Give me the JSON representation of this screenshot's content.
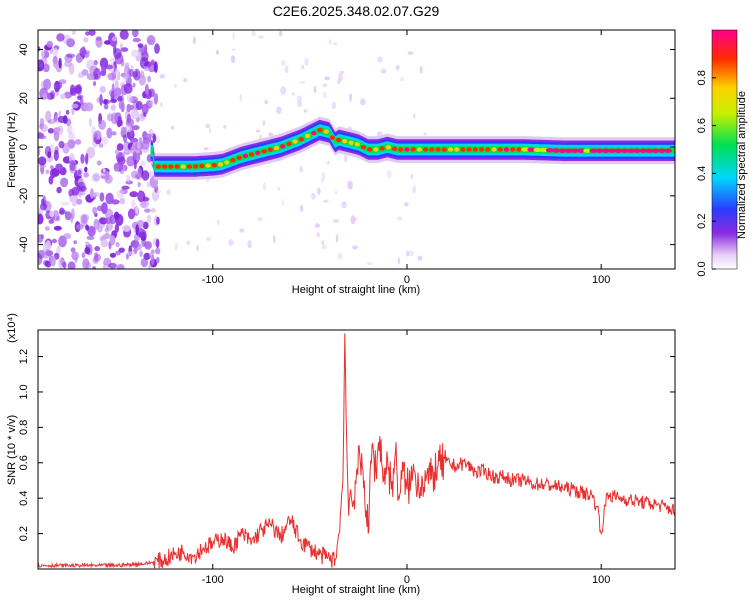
{
  "chart_data": [
    {
      "type": "heatmap",
      "title": "C2E6.2025.348.02.07.G29",
      "xlabel": "Height of straight line (km)",
      "ylabel": "Frequency (Hz)",
      "xlim": [
        -190,
        138
      ],
      "ylim": [
        -50,
        48
      ],
      "xticks": [
        -100,
        0,
        100
      ],
      "xtick_labels": [
        "-100",
        "0",
        "100"
      ],
      "yticks": [
        -40,
        -20,
        0,
        20,
        40
      ],
      "ytick_labels": [
        "-40",
        "-20",
        "0",
        "20",
        "40"
      ],
      "colorbar": {
        "label": "Normalized spectral amplitude",
        "range": [
          0,
          1
        ],
        "ticks": [
          0,
          0.2,
          0.4,
          0.6,
          0.8
        ],
        "tick_labels": [
          "0.0",
          "0.2",
          "0.4",
          "0.6",
          "0.8"
        ]
      },
      "ridge": {
        "x": [
          -130,
          -120,
          -110,
          -100,
          -95,
          -85,
          -75,
          -65,
          -55,
          -50,
          -45,
          -40,
          -37,
          -35,
          -30,
          -25,
          -20,
          -15,
          -10,
          -5,
          0,
          10,
          20,
          40,
          60,
          80,
          100,
          120,
          138
        ],
        "y": [
          -8,
          -8,
          -8,
          -7.5,
          -7,
          -4,
          -2,
          0,
          3,
          5,
          7,
          6,
          2,
          3,
          2,
          1,
          -1,
          -1,
          0,
          -1,
          -1,
          -1,
          -1,
          -1,
          -1,
          -1.5,
          -1.5,
          -1.5,
          -1.5
        ]
      }
    },
    {
      "type": "line",
      "xlabel": "Height of straight line (km)",
      "ylabel": "SNR (10 * v/v)",
      "y_scale_label": "(x10⁴)",
      "xlim": [
        -190,
        138
      ],
      "ylim": [
        0,
        1.35
      ],
      "xticks": [
        -100,
        0,
        100
      ],
      "xtick_labels": [
        "-100",
        "0",
        "100"
      ],
      "yticks": [
        0.2,
        0.4,
        0.6,
        0.8,
        1.0,
        1.2
      ],
      "ytick_labels": [
        "0.2",
        "0.4",
        "0.6",
        "0.8",
        "1.0",
        "1.2"
      ],
      "color": "#e83030",
      "series": [
        {
          "name": "SNR",
          "x": [
            -190,
            -170,
            -150,
            -135,
            -125,
            -120,
            -115,
            -110,
            -105,
            -100,
            -95,
            -90,
            -85,
            -80,
            -75,
            -70,
            -65,
            -60,
            -55,
            -50,
            -45,
            -40,
            -37,
            -35,
            -33,
            -32,
            -31,
            -30,
            -29,
            -28,
            -26,
            -24,
            -22,
            -20,
            -18,
            -16,
            -14,
            -12,
            -10,
            -8,
            -6,
            -4,
            -2,
            0,
            2,
            4,
            6,
            8,
            10,
            12,
            14,
            16,
            20,
            25,
            30,
            35,
            40,
            45,
            50,
            55,
            60,
            65,
            70,
            75,
            80,
            85,
            90,
            95,
            98,
            100,
            103,
            110,
            120,
            130,
            138
          ],
          "values": [
            0.02,
            0.02,
            0.02,
            0.03,
            0.05,
            0.08,
            0.1,
            0.07,
            0.12,
            0.14,
            0.18,
            0.12,
            0.2,
            0.15,
            0.22,
            0.25,
            0.18,
            0.28,
            0.16,
            0.12,
            0.08,
            0.06,
            0.05,
            0.2,
            0.5,
            1.33,
            0.7,
            0.3,
            0.45,
            0.35,
            0.55,
            0.6,
            0.5,
            0.2,
            0.7,
            0.55,
            0.75,
            0.5,
            0.62,
            0.45,
            0.65,
            0.4,
            0.55,
            0.45,
            0.5,
            0.55,
            0.48,
            0.5,
            0.52,
            0.5,
            0.55,
            0.58,
            0.6,
            0.58,
            0.6,
            0.55,
            0.55,
            0.52,
            0.52,
            0.5,
            0.5,
            0.48,
            0.48,
            0.47,
            0.46,
            0.45,
            0.43,
            0.42,
            0.35,
            0.2,
            0.42,
            0.4,
            0.38,
            0.36,
            0.33
          ]
        }
      ]
    }
  ]
}
